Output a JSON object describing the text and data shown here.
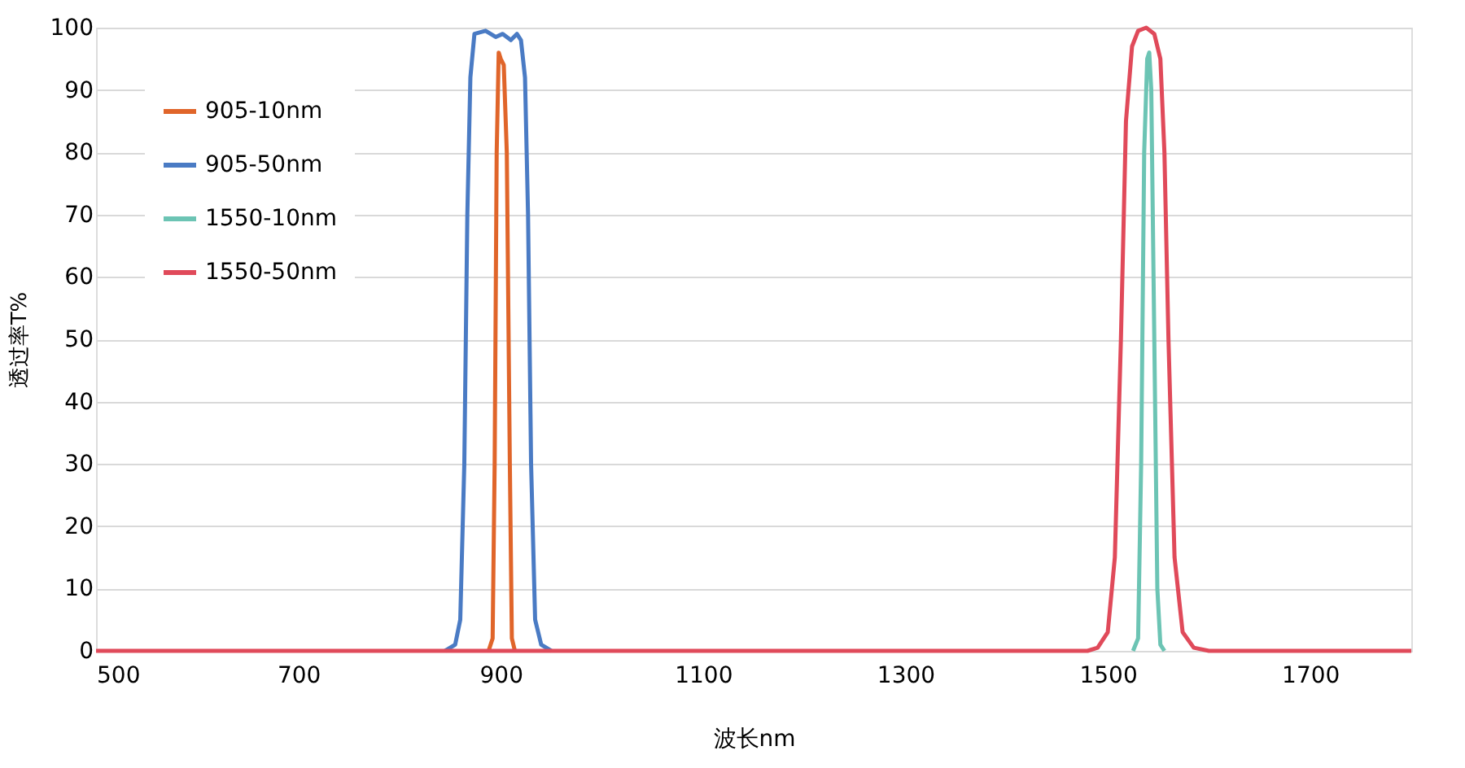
{
  "chart_data": {
    "type": "line",
    "xlabel": "波长nm",
    "ylabel": "透过率T%",
    "xlim": [
      500,
      1800
    ],
    "xticks": [
      500,
      700,
      900,
      1100,
      1300,
      1500,
      1700
    ],
    "ylim": [
      0,
      100
    ],
    "yticks": [
      0,
      10,
      20,
      30,
      40,
      50,
      60,
      70,
      80,
      90,
      100
    ],
    "grid": "y",
    "legend": "top left",
    "marker": "none",
    "line_style": "solid",
    "series": [
      {
        "name": "905-10nm",
        "color": "#e0652a",
        "x": [
          888,
          892,
          894,
          896,
          898,
          900,
          903,
          906,
          909,
          911,
          914
        ],
        "values": [
          0,
          2,
          30,
          80,
          96,
          95,
          94,
          80,
          30,
          2,
          0
        ]
      },
      {
        "name": "905-50nm",
        "color": "#4a7bc4",
        "x": [
          845,
          855,
          860,
          864,
          867,
          870,
          874,
          885,
          895,
          902,
          910,
          916,
          920,
          924,
          927,
          930,
          934,
          940,
          950
        ],
        "values": [
          0,
          1,
          5,
          30,
          70,
          92,
          99,
          99.5,
          98.5,
          99,
          98,
          99,
          98,
          92,
          70,
          30,
          5,
          1,
          0
        ]
      },
      {
        "name": "1550-10nm",
        "color": "#6cc4b4",
        "x": [
          1525,
          1530,
          1533,
          1536,
          1539,
          1541,
          1543,
          1546,
          1549,
          1552,
          1556
        ],
        "values": [
          0,
          2,
          30,
          80,
          95,
          96,
          90,
          50,
          10,
          1,
          0
        ]
      },
      {
        "name": "1550-50nm",
        "color": "#e04a5a",
        "x": [
          500,
          1480,
          1490,
          1500,
          1507,
          1513,
          1518,
          1524,
          1530,
          1538,
          1546,
          1552,
          1556,
          1560,
          1566,
          1574,
          1585,
          1600,
          1800
        ],
        "values": [
          0,
          0,
          0.5,
          3,
          15,
          50,
          85,
          97,
          99.5,
          100,
          99,
          95,
          80,
          50,
          15,
          3,
          0.5,
          0,
          0
        ]
      }
    ]
  }
}
